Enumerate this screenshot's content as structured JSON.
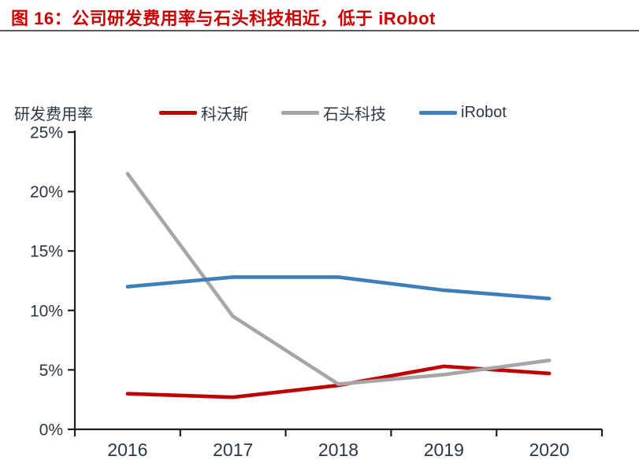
{
  "header": {
    "title": "图 16：公司研发费用率与石头科技相近，低于 iRobot"
  },
  "colors": {
    "title": "#CC0000",
    "axis": "#1f1f1f",
    "text": "#2b3745"
  },
  "chart_data": {
    "type": "line",
    "title": "图 16：公司研发费用率与石头科技相近，低于 iRobot",
    "axis_title": "研发费用率",
    "categories": [
      "2016",
      "2017",
      "2018",
      "2019",
      "2020"
    ],
    "series": [
      {
        "name": "科沃斯",
        "color": "#C00000",
        "values": [
          3.0,
          2.7,
          3.7,
          5.3,
          4.7
        ]
      },
      {
        "name": "石头科技",
        "color": "#A6A6A6",
        "values": [
          21.5,
          9.5,
          3.8,
          4.6,
          5.8
        ]
      },
      {
        "name": "iRobot",
        "color": "#3D7EBB",
        "values": [
          12.0,
          12.8,
          12.8,
          11.7,
          11.0
        ]
      }
    ],
    "ylim": [
      0,
      25
    ],
    "ytick_step": 5,
    "ytick_labels": [
      "0%",
      "5%",
      "10%",
      "15%",
      "20%",
      "25%"
    ],
    "xlabel": "",
    "ylabel": "研发费用率",
    "legend_position": "top",
    "grid": false
  }
}
